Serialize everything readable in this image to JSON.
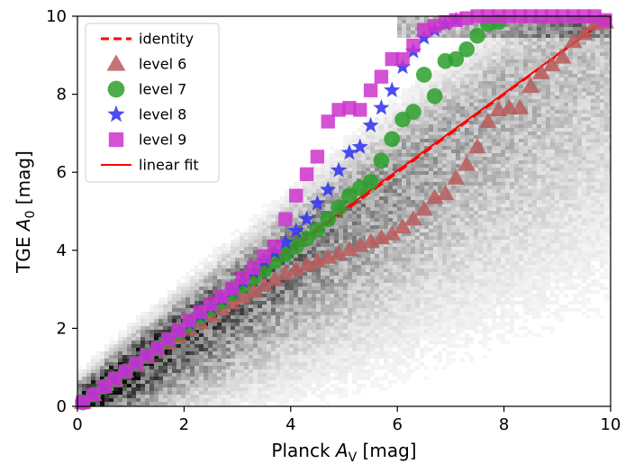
{
  "chart_data": {
    "type": "scatter",
    "xlabel": {
      "main": "Planck ",
      "italic": "A",
      "sub": "V",
      "unit": " [mag]"
    },
    "ylabel": {
      "main": "TGE ",
      "italic": "A",
      "sub": "0",
      "unit": " [mag]"
    },
    "xlim": [
      0,
      10
    ],
    "ylim": [
      0,
      10
    ],
    "xticks": [
      "0",
      "2",
      "4",
      "6",
      "8",
      "10"
    ],
    "yticks": [
      "0",
      "2",
      "4",
      "6",
      "8",
      "10"
    ],
    "grid": false,
    "legend_position": "top-left",
    "background": "grayscale 2D density of pixels, concentrated along the identity line",
    "series": [
      {
        "name": "identity",
        "kind": "line",
        "style": "dashed",
        "color": "#ff0000",
        "points": [
          [
            0,
            0
          ],
          [
            10,
            10
          ]
        ]
      },
      {
        "name": "level 6",
        "kind": "marker",
        "marker": "triangle",
        "color": "#b85c5c",
        "points": [
          [
            0.1,
            0.1
          ],
          [
            0.3,
            0.3
          ],
          [
            0.5,
            0.5
          ],
          [
            0.7,
            0.7
          ],
          [
            0.9,
            0.9
          ],
          [
            1.1,
            1.05
          ],
          [
            1.3,
            1.25
          ],
          [
            1.5,
            1.45
          ],
          [
            1.7,
            1.62
          ],
          [
            1.9,
            1.8
          ],
          [
            2.1,
            1.98
          ],
          [
            2.3,
            2.15
          ],
          [
            2.5,
            2.32
          ],
          [
            2.7,
            2.5
          ],
          [
            2.9,
            2.65
          ],
          [
            3.1,
            2.8
          ],
          [
            3.3,
            2.95
          ],
          [
            3.5,
            3.1
          ],
          [
            3.7,
            3.25
          ],
          [
            3.9,
            3.4
          ],
          [
            4.1,
            3.52
          ],
          [
            4.3,
            3.62
          ],
          [
            4.5,
            3.72
          ],
          [
            4.7,
            3.82
          ],
          [
            4.9,
            3.92
          ],
          [
            5.1,
            4.02
          ],
          [
            5.3,
            4.12
          ],
          [
            5.5,
            4.22
          ],
          [
            5.7,
            4.32
          ],
          [
            5.9,
            4.42
          ],
          [
            6.1,
            4.6
          ],
          [
            6.3,
            4.8
          ],
          [
            6.5,
            5.05
          ],
          [
            6.7,
            5.35
          ],
          [
            6.9,
            5.45
          ],
          [
            7.1,
            5.85
          ],
          [
            7.3,
            6.2
          ],
          [
            7.5,
            6.65
          ],
          [
            7.7,
            7.3
          ],
          [
            7.9,
            7.6
          ],
          [
            8.1,
            7.65
          ],
          [
            8.3,
            7.65
          ],
          [
            8.5,
            8.2
          ],
          [
            8.7,
            8.55
          ],
          [
            8.9,
            8.75
          ],
          [
            9.1,
            8.95
          ],
          [
            9.3,
            9.35
          ],
          [
            9.5,
            9.55
          ],
          [
            9.7,
            9.8
          ],
          [
            9.9,
            9.85
          ]
        ]
      },
      {
        "name": "level 7",
        "kind": "marker",
        "marker": "circle",
        "color": "#2ca02c",
        "points": [
          [
            0.1,
            0.1
          ],
          [
            0.3,
            0.3
          ],
          [
            0.5,
            0.5
          ],
          [
            0.7,
            0.7
          ],
          [
            0.9,
            0.9
          ],
          [
            1.1,
            1.1
          ],
          [
            1.3,
            1.3
          ],
          [
            1.5,
            1.5
          ],
          [
            1.7,
            1.7
          ],
          [
            1.9,
            1.9
          ],
          [
            2.1,
            2.1
          ],
          [
            2.3,
            2.3
          ],
          [
            2.5,
            2.5
          ],
          [
            2.7,
            2.7
          ],
          [
            2.9,
            2.9
          ],
          [
            3.1,
            3.1
          ],
          [
            3.3,
            3.3
          ],
          [
            3.5,
            3.5
          ],
          [
            3.7,
            3.72
          ],
          [
            3.9,
            3.9
          ],
          [
            4.1,
            4.1
          ],
          [
            4.3,
            4.3
          ],
          [
            4.5,
            4.52
          ],
          [
            4.7,
            4.8
          ],
          [
            4.9,
            5.1
          ],
          [
            5.1,
            5.4
          ],
          [
            5.3,
            5.6
          ],
          [
            5.5,
            5.75
          ],
          [
            5.7,
            6.3
          ],
          [
            5.9,
            6.85
          ],
          [
            6.1,
            7.35
          ],
          [
            6.3,
            7.55
          ],
          [
            6.5,
            8.5
          ],
          [
            6.7,
            7.95
          ],
          [
            6.9,
            8.85
          ],
          [
            7.1,
            8.9
          ],
          [
            7.3,
            9.15
          ],
          [
            7.5,
            9.5
          ],
          [
            7.7,
            9.8
          ],
          [
            7.9,
            9.85
          ]
        ]
      },
      {
        "name": "level 8",
        "kind": "marker",
        "marker": "star",
        "color": "#3838f0",
        "points": [
          [
            0.1,
            0.1
          ],
          [
            0.3,
            0.3
          ],
          [
            0.5,
            0.5
          ],
          [
            0.7,
            0.7
          ],
          [
            0.9,
            0.9
          ],
          [
            1.1,
            1.1
          ],
          [
            1.3,
            1.3
          ],
          [
            1.5,
            1.5
          ],
          [
            1.7,
            1.72
          ],
          [
            1.9,
            1.92
          ],
          [
            2.1,
            2.12
          ],
          [
            2.3,
            2.33
          ],
          [
            2.5,
            2.55
          ],
          [
            2.7,
            2.75
          ],
          [
            2.9,
            2.97
          ],
          [
            3.1,
            3.2
          ],
          [
            3.3,
            3.45
          ],
          [
            3.5,
            3.72
          ],
          [
            3.7,
            3.95
          ],
          [
            3.9,
            4.2
          ],
          [
            4.1,
            4.5
          ],
          [
            4.3,
            4.8
          ],
          [
            4.5,
            5.2
          ],
          [
            4.7,
            5.55
          ],
          [
            4.9,
            6.05
          ],
          [
            5.1,
            6.5
          ],
          [
            5.3,
            6.65
          ],
          [
            5.5,
            7.2
          ],
          [
            5.7,
            7.65
          ],
          [
            5.9,
            8.1
          ],
          [
            6.1,
            8.7
          ],
          [
            6.3,
            9.1
          ],
          [
            6.5,
            9.45
          ],
          [
            6.7,
            9.65
          ],
          [
            6.9,
            9.8
          ],
          [
            7.1,
            9.9
          ]
        ]
      },
      {
        "name": "level 9",
        "kind": "marker",
        "marker": "square",
        "color": "#cc33cc",
        "points": [
          [
            0.1,
            0.1
          ],
          [
            0.3,
            0.3
          ],
          [
            0.5,
            0.5
          ],
          [
            0.7,
            0.7
          ],
          [
            0.9,
            0.9
          ],
          [
            1.1,
            1.1
          ],
          [
            1.3,
            1.3
          ],
          [
            1.5,
            1.5
          ],
          [
            1.7,
            1.72
          ],
          [
            1.9,
            1.95
          ],
          [
            2.1,
            2.2
          ],
          [
            2.3,
            2.42
          ],
          [
            2.5,
            2.62
          ],
          [
            2.7,
            2.82
          ],
          [
            2.9,
            3.02
          ],
          [
            3.1,
            3.3
          ],
          [
            3.3,
            3.55
          ],
          [
            3.5,
            3.85
          ],
          [
            3.7,
            4.1
          ],
          [
            3.9,
            4.8
          ],
          [
            4.1,
            5.4
          ],
          [
            4.3,
            5.95
          ],
          [
            4.5,
            6.4
          ],
          [
            4.7,
            7.3
          ],
          [
            4.9,
            7.6
          ],
          [
            5.1,
            7.65
          ],
          [
            5.3,
            7.6
          ],
          [
            5.5,
            8.1
          ],
          [
            5.7,
            8.45
          ],
          [
            5.9,
            8.9
          ],
          [
            6.1,
            8.9
          ],
          [
            6.3,
            9.25
          ],
          [
            6.5,
            9.65
          ],
          [
            6.7,
            9.75
          ],
          [
            6.9,
            9.85
          ],
          [
            7.1,
            9.9
          ],
          [
            7.3,
            9.95
          ],
          [
            7.5,
            10
          ],
          [
            7.7,
            10
          ],
          [
            7.9,
            10
          ],
          [
            8.1,
            10
          ],
          [
            8.3,
            10
          ],
          [
            8.5,
            10
          ],
          [
            8.7,
            10
          ],
          [
            8.9,
            10
          ],
          [
            9.1,
            10
          ],
          [
            9.3,
            10
          ],
          [
            9.5,
            10
          ],
          [
            9.7,
            10
          ],
          [
            9.9,
            9.9
          ]
        ]
      },
      {
        "name": "linear fit",
        "kind": "line",
        "style": "solid",
        "color": "#ff0000",
        "points": [
          [
            0,
            0.1
          ],
          [
            10,
            10
          ]
        ]
      }
    ]
  }
}
